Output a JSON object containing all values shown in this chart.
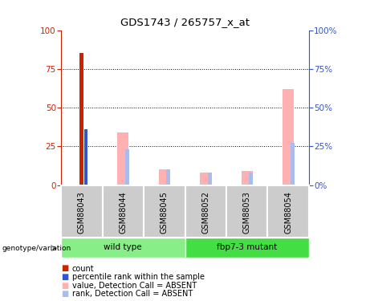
{
  "title": "GDS1743 / 265757_x_at",
  "samples": [
    "GSM88043",
    "GSM88044",
    "GSM88045",
    "GSM88052",
    "GSM88053",
    "GSM88054"
  ],
  "group_colors": {
    "wild type": "#77ee77",
    "fbp7-3 mutant": "#44dd44"
  },
  "ylim": [
    0,
    100
  ],
  "yticks": [
    0,
    25,
    50,
    75,
    100
  ],
  "red_bars": [
    85,
    0,
    0,
    0,
    0,
    0
  ],
  "blue_bars": [
    36,
    0,
    0,
    0,
    0,
    0
  ],
  "pink_bars": [
    0,
    34,
    10,
    8,
    9,
    62
  ],
  "lavender_bars": [
    0,
    23,
    10,
    8,
    8,
    27
  ],
  "red_color": "#cc2200",
  "blue_color": "#3355cc",
  "pink_color": "#ffb0b0",
  "lavender_color": "#aabbee",
  "sample_bg": "#cccccc",
  "wt_color": "#88ee88",
  "mut_color": "#44dd44",
  "legend_items": [
    {
      "label": "count",
      "color": "#cc2200"
    },
    {
      "label": "percentile rank within the sample",
      "color": "#3355cc"
    },
    {
      "label": "value, Detection Call = ABSENT",
      "color": "#ffb0b0"
    },
    {
      "label": "rank, Detection Call = ABSENT",
      "color": "#aabbee"
    }
  ]
}
